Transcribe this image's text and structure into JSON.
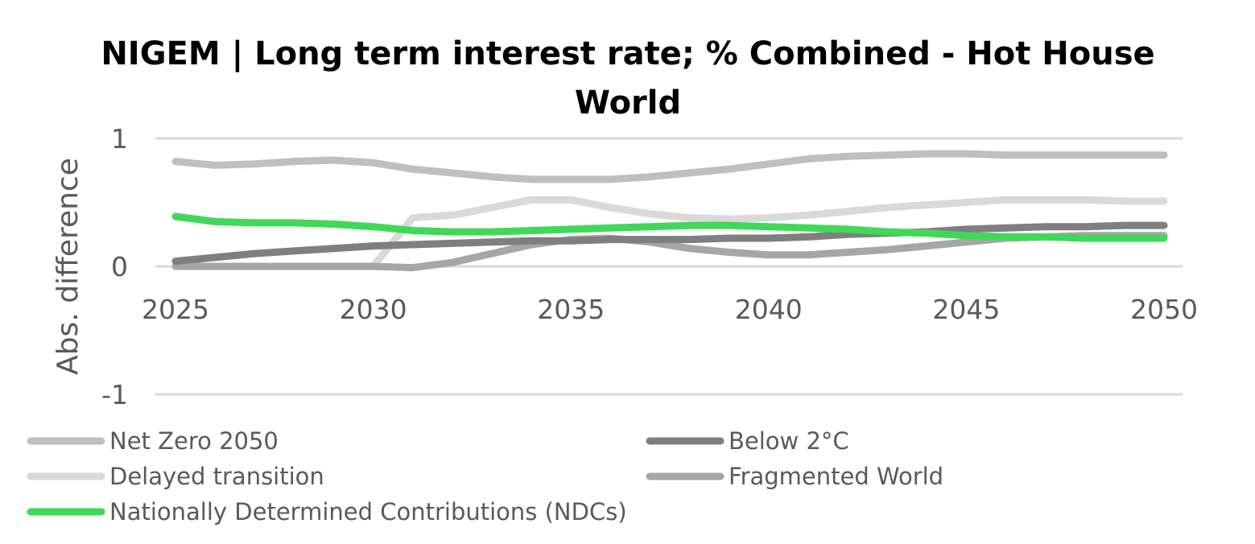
{
  "chart_data": {
    "type": "line",
    "title_lines": [
      "NIGEM | Long term interest rate; % Combined - Hot House",
      "World"
    ],
    "xlabel": "",
    "ylabel": "Abs. difference",
    "xlim": [
      2025,
      2050
    ],
    "ylim": [
      -1,
      1
    ],
    "x_ticks": [
      2025,
      2030,
      2035,
      2040,
      2045,
      2050
    ],
    "y_ticks": [
      1,
      0,
      -1
    ],
    "grid": true,
    "legend_position": "bottom",
    "x": [
      2025,
      2026,
      2027,
      2028,
      2029,
      2030,
      2031,
      2032,
      2033,
      2034,
      2035,
      2036,
      2037,
      2038,
      2039,
      2040,
      2041,
      2042,
      2043,
      2044,
      2045,
      2046,
      2047,
      2048,
      2049,
      2050
    ],
    "series": [
      {
        "name": "Net Zero 2050",
        "color": "#bfbfbf",
        "values": [
          0.82,
          0.79,
          0.8,
          0.82,
          0.83,
          0.81,
          0.76,
          0.73,
          0.7,
          0.68,
          0.68,
          0.68,
          0.7,
          0.73,
          0.76,
          0.8,
          0.84,
          0.86,
          0.87,
          0.88,
          0.88,
          0.87,
          0.87,
          0.87,
          0.87,
          0.87
        ]
      },
      {
        "name": "Below 2°C",
        "color": "#7f7f7f",
        "values": [
          0.04,
          0.07,
          0.1,
          0.12,
          0.14,
          0.16,
          0.17,
          0.18,
          0.19,
          0.2,
          0.2,
          0.21,
          0.21,
          0.21,
          0.22,
          0.22,
          0.23,
          0.25,
          0.26,
          0.27,
          0.29,
          0.3,
          0.31,
          0.31,
          0.32,
          0.32
        ]
      },
      {
        "name": "Delayed transition",
        "color": "#d9d9d9",
        "values": [
          0.0,
          0.0,
          0.0,
          0.0,
          0.0,
          0.0,
          0.38,
          0.4,
          0.46,
          0.52,
          0.52,
          0.46,
          0.41,
          0.38,
          0.37,
          0.38,
          0.4,
          0.43,
          0.46,
          0.48,
          0.5,
          0.52,
          0.52,
          0.52,
          0.51,
          0.51
        ]
      },
      {
        "name": "Fragmented World",
        "color": "#a6a6a6",
        "values": [
          0.0,
          0.0,
          0.0,
          0.0,
          0.0,
          0.0,
          -0.01,
          0.03,
          0.1,
          0.17,
          0.21,
          0.22,
          0.19,
          0.14,
          0.11,
          0.09,
          0.09,
          0.11,
          0.13,
          0.16,
          0.19,
          0.22,
          0.23,
          0.24,
          0.24,
          0.24
        ]
      },
      {
        "name": "Nationally Determined Contributions (NDCs)",
        "color": "#41d85a",
        "values": [
          0.39,
          0.35,
          0.34,
          0.34,
          0.33,
          0.31,
          0.28,
          0.27,
          0.27,
          0.28,
          0.29,
          0.3,
          0.31,
          0.32,
          0.32,
          0.31,
          0.3,
          0.29,
          0.27,
          0.26,
          0.24,
          0.23,
          0.23,
          0.22,
          0.22,
          0.22
        ]
      }
    ]
  }
}
